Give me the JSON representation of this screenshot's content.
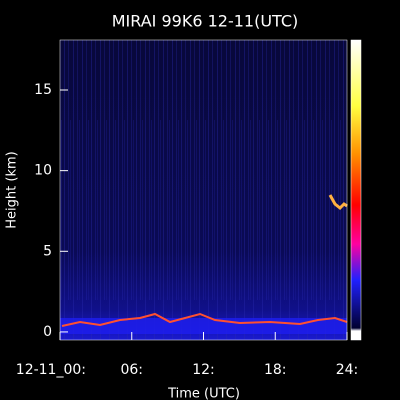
{
  "chart_data": {
    "type": "heatmap",
    "title": "MIRAI 99K6 12-11(UTC)",
    "xlabel": "Time (UTC)",
    "ylabel": "Height (km)",
    "xlim": [
      0,
      24
    ],
    "xticks": [
      {
        "value": 0,
        "label": "12-11_00:"
      },
      {
        "value": 6,
        "label": "06:"
      },
      {
        "value": 12,
        "label": "12:"
      },
      {
        "value": 18,
        "label": "18:"
      },
      {
        "value": 24,
        "label": "24:"
      }
    ],
    "ylim": [
      -0.5,
      18.1
    ],
    "yticks": [
      0,
      5,
      10,
      15
    ]
  }
}
